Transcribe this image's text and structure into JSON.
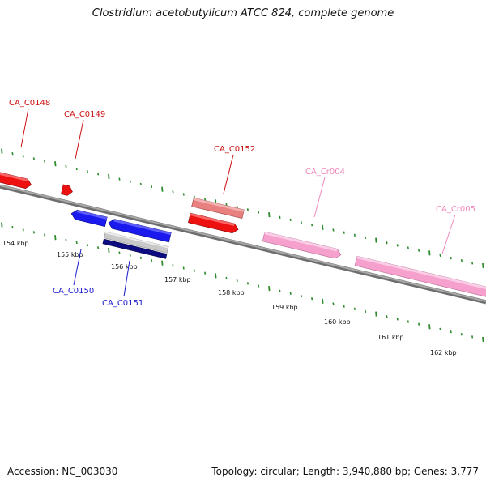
{
  "title": "Clostridium acetobutylicum ATCC 824, complete genome",
  "accession": "Accession: NC_003030",
  "info": "Topology: circular; Length: 3,940,880 bp; Genes: 3,777",
  "colors": {
    "backbone": "#8a8a8a",
    "tick": "#2e8b2e",
    "forward_gene": "#ee1111",
    "forward_gene_light": "#e88080",
    "reverse_gene": "#1a1aee",
    "reverse_gene_dark": "#0c0c80",
    "reverse_gene_light": "#c9c9c9",
    "rna": "#f5a0cd"
  },
  "tick_labels": [
    "154 kbp",
    "155 kbp",
    "156 kbp",
    "157 kbp",
    "158 kbp",
    "159 kbp",
    "160 kbp",
    "161 kbp",
    "162 kbp"
  ],
  "gene_labels": [
    {
      "id": "CA_C0148",
      "strand": "forward",
      "color": "#cc1111"
    },
    {
      "id": "CA_C0149",
      "strand": "forward",
      "color": "#cc1111"
    },
    {
      "id": "CA_C0152",
      "strand": "forward",
      "color": "#cc1111"
    },
    {
      "id": "CA_Cr004",
      "strand": "forward",
      "color": "#ee88bb"
    },
    {
      "id": "CA_Cr005",
      "strand": "forward",
      "color": "#ee88bb"
    },
    {
      "id": "CA_C0150",
      "strand": "reverse",
      "color": "#1a1acc"
    },
    {
      "id": "CA_C0151",
      "strand": "reverse",
      "color": "#1a1acc"
    }
  ]
}
